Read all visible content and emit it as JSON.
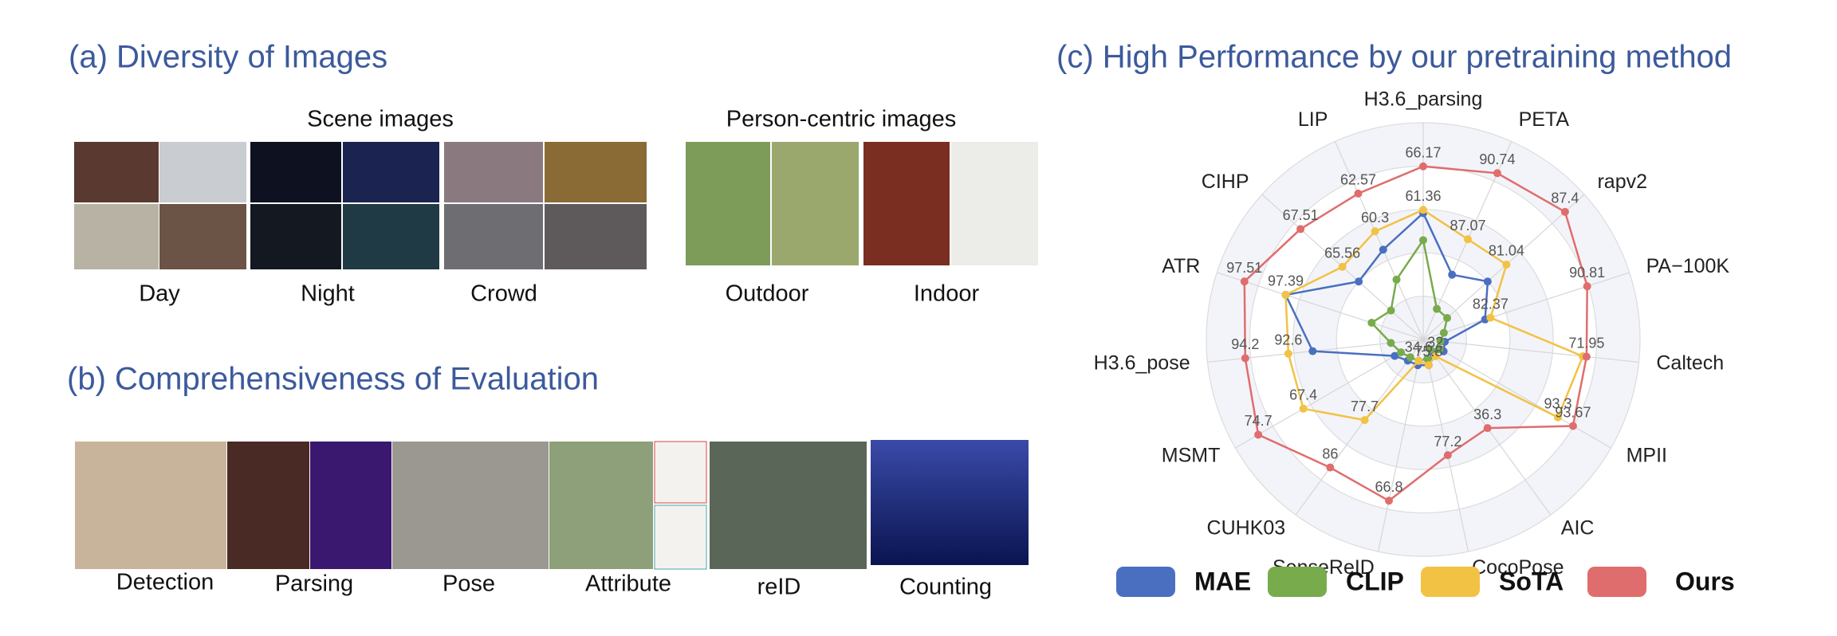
{
  "panel_a": {
    "title": "(a) Diversity of Images",
    "scene_title": "Scene images",
    "person_title": "Person-centric images",
    "scene_captions": [
      "Day",
      "Night",
      "Crowd"
    ],
    "person_captions": [
      "Outdoor",
      "Indoor"
    ]
  },
  "panel_b": {
    "title": "(b) Comprehensiveness of Evaluation",
    "captions": [
      "Detection",
      "Parsing",
      "Pose",
      "Attribute",
      "reID",
      "Counting"
    ]
  },
  "panel_c": {
    "title": "(c) High Performance by our pretraining method"
  },
  "chart_data": {
    "type": "radar",
    "grid": true,
    "axes": [
      {
        "name": "H3.6_parsing",
        "rlim": [
          47,
          71
        ]
      },
      {
        "name": "PETA",
        "rlim": [
          81.5,
          92.5
        ]
      },
      {
        "name": "rapv2",
        "rlim": [
          72,
          89.5
        ]
      },
      {
        "name": "PA−100K",
        "rlim": [
          76.5,
          94.5
        ]
      },
      {
        "name": "Caltech",
        "rlim": [
          0,
          95
        ]
      },
      {
        "name": "MPII",
        "rlim": [
          90,
          94.6
        ]
      },
      {
        "name": "AIC",
        "rlim": [
          31,
          41.5
        ]
      },
      {
        "name": "CocoPose",
        "rlim": [
          75.4,
          78.7
        ]
      },
      {
        "name": "SenseReID",
        "rlim": [
          29.7,
          78.5
        ]
      },
      {
        "name": "CUHK03",
        "rlim": [
          63.6,
          94.3
        ]
      },
      {
        "name": "MSMT",
        "rlim": [
          48,
          78.4
        ]
      },
      {
        "name": "H3.6_pose",
        "rlim": [
          87.6,
          95.6
        ]
      },
      {
        "name": "ATR",
        "rlim": [
          96.99,
          97.59
        ]
      },
      {
        "name": "CIHP",
        "rlim": [
          61.8,
          69.3
        ]
      },
      {
        "name": "LIP",
        "rlim": [
          53.8,
          65.7
        ]
      }
    ],
    "series": [
      {
        "name": "MAE",
        "color": "#4a6fc1",
        "values": [
          61.0,
          85.1,
          79.0,
          81.9,
          9.5,
          90.5,
          31.8,
          75.8,
          35.6,
          67.3,
          52.6,
          91.7,
          97.39,
          64.8,
          59.2
        ]
      },
      {
        "name": "CLIP",
        "color": "#78ab4c",
        "values": [
          58.0,
          83.2,
          74.6,
          78.3,
          7.6,
          90.4,
          31.6,
          75.7,
          34.6,
          66.7,
          51.6,
          88.8,
          97.14,
          63.3,
          57.4
        ]
      },
      {
        "name": "SoTA",
        "color": "#f2c245",
        "values": [
          61.36,
          87.07,
          81.04,
          82.37,
          70.3,
          93.3,
          32,
          75.8,
          34.6,
          77.7,
          67.4,
          92.6,
          97.39,
          65.56,
          60.3
        ],
        "value_labels": [
          "61.36",
          "87.07",
          "81.04",
          "82.37",
          null,
          "93.3",
          "32",
          "75.8",
          "34.6",
          "77.7",
          "67.4",
          "92.6",
          "97.39",
          "65.56",
          "60.3"
        ]
      },
      {
        "name": "Ours",
        "color": "#e06d6d",
        "values": [
          66.17,
          90.74,
          87.4,
          90.81,
          71.95,
          93.67,
          36.3,
          77.2,
          66.8,
          86,
          74.7,
          94.2,
          97.51,
          67.51,
          62.57
        ],
        "value_labels": [
          "66.17",
          "90.74",
          "87.4",
          "90.81",
          "71.95",
          "93.67",
          "36.3",
          "77.2",
          "66.8",
          "86",
          "74.7",
          "94.2",
          "97.51",
          "67.51",
          "62.57"
        ]
      }
    ]
  }
}
